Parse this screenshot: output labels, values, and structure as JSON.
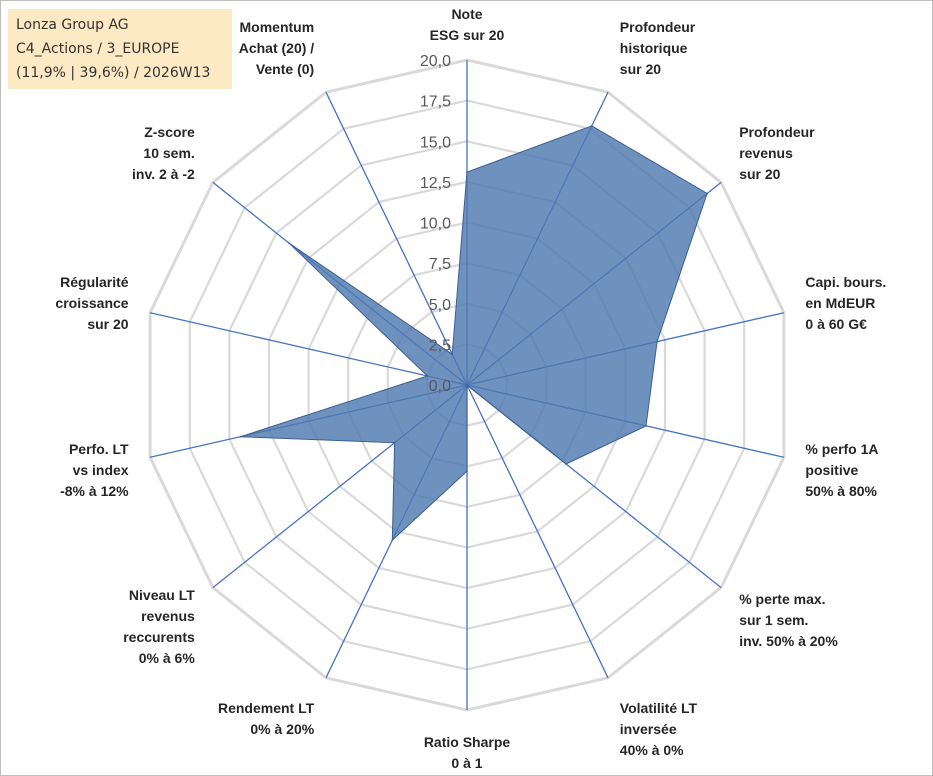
{
  "info": {
    "line1": "Lonza Group AG",
    "line2": "C4_Actions / 3_EUROPE",
    "line3": "(11,9% | 39,6%) / 2026W13"
  },
  "chart_data": {
    "type": "radar",
    "title": "",
    "range": [
      0,
      20
    ],
    "ticks": [
      "0,0",
      "2,5",
      "5,0",
      "7,5",
      "10,0",
      "12,5",
      "15,0",
      "17,5",
      "20,0"
    ],
    "grid": true,
    "categories": [
      [
        "Note",
        "ESG sur 20"
      ],
      [
        "Profondeur",
        "historique",
        "sur 20"
      ],
      [
        "Profondeur",
        "revenus",
        "sur 20"
      ],
      [
        "Capi. bours.",
        "en MdEUR",
        "0 à 60 G€"
      ],
      [
        "% perfo 1A",
        "positive",
        "50% à 80%"
      ],
      [
        "% perte max.",
        "sur 1 sem.",
        "inv. 50% à 20%"
      ],
      [
        "Volatilité LT",
        "inversée",
        "40% à 0%"
      ],
      [
        "Ratio Sharpe",
        "0 à 1"
      ],
      [
        "Rendement LT",
        "0% à 20%"
      ],
      [
        "Niveau LT",
        "revenus",
        "reccurents",
        "0% à 6%"
      ],
      [
        "Perfo. LT",
        "vs index",
        "-8% à 12%"
      ],
      [
        "Régularité",
        "croissance",
        "sur 20"
      ],
      [
        "Z-score",
        "10 sem.",
        "inv. 2 à -2"
      ],
      [
        "Momentum",
        "Achat (20) /",
        "Vente (0)"
      ]
    ],
    "series": [
      {
        "name": "Lonza Group AG",
        "color": "#4f79b0",
        "values": [
          13.1,
          17.7,
          18.9,
          12.0,
          11.3,
          7.8,
          0.0,
          5.3,
          10.6,
          5.7,
          14.3,
          2.5,
          14.0,
          2.1
        ]
      }
    ]
  }
}
